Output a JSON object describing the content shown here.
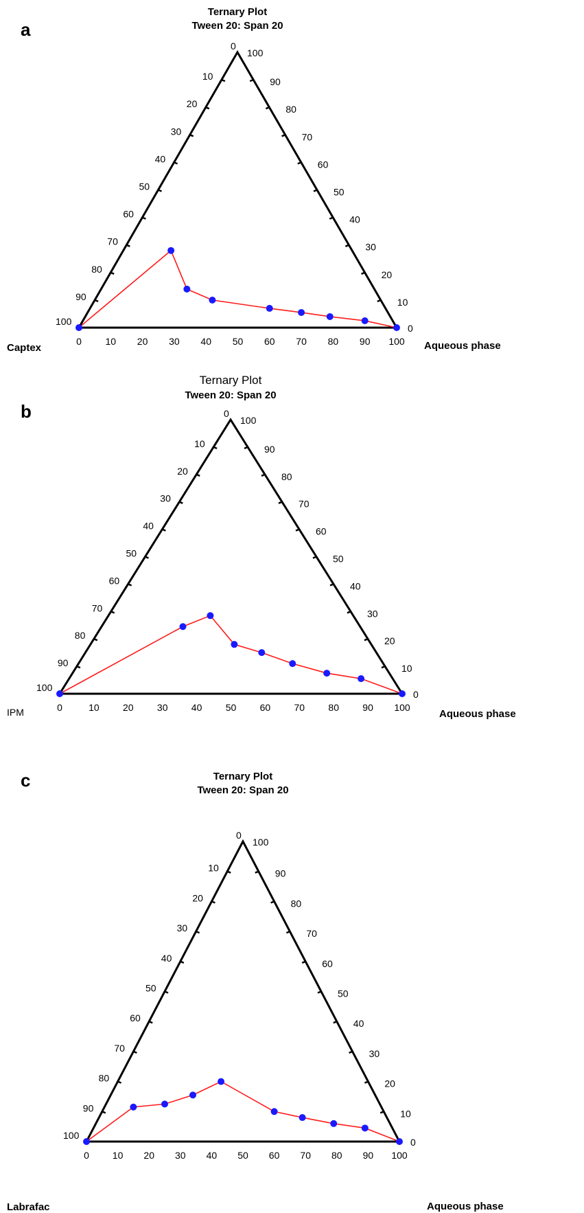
{
  "colors": {
    "frame": "#000000",
    "line": "#ff1a1a",
    "point": "#1a1aff"
  },
  "chart_data": [
    {
      "type": "scatter",
      "panel": "a",
      "title": "Ternary Plot",
      "subtitle": "Tween 20: Span 20",
      "left_corner_label": "Captex",
      "right_corner_label": "Aqueous phase",
      "bottom_ticks": [
        "0",
        "10",
        "20",
        "30",
        "40",
        "50",
        "60",
        "70",
        "80",
        "90",
        "100"
      ],
      "left_ticks": [
        "0",
        "10",
        "20",
        "30",
        "40",
        "50",
        "60",
        "70",
        "80",
        "90",
        "100"
      ],
      "right_ticks": [
        "100",
        "90",
        "80",
        "70",
        "60",
        "50",
        "40",
        "30",
        "20",
        "10",
        "0"
      ],
      "x": [
        0,
        29,
        34,
        42,
        60,
        70,
        79,
        90,
        100
      ],
      "y": [
        0,
        28,
        14,
        10,
        7,
        5.5,
        4,
        2.5,
        0
      ]
    },
    {
      "type": "scatter",
      "panel": "b",
      "title": "Ternary Plot",
      "subtitle": "Tween 20: Span 20",
      "left_corner_label": "IPM",
      "right_corner_label": "Aqueous phase",
      "bottom_ticks": [
        "0",
        "10",
        "20",
        "30",
        "40",
        "50",
        "60",
        "70",
        "80",
        "90",
        "100"
      ],
      "left_ticks": [
        "0",
        "10",
        "20",
        "30",
        "40",
        "50",
        "60",
        "70",
        "80",
        "90",
        "100"
      ],
      "right_ticks": [
        "100",
        "90",
        "80",
        "70",
        "60",
        "50",
        "40",
        "30",
        "20",
        "10",
        "0"
      ],
      "x": [
        0,
        36,
        44,
        51,
        59,
        68,
        78,
        88,
        100
      ],
      "y": [
        0,
        24.5,
        28.5,
        18,
        15,
        11,
        7.5,
        5.5,
        0
      ]
    },
    {
      "type": "scatter",
      "panel": "c",
      "title": "Ternary Plot",
      "subtitle": "Tween 20: Span 20",
      "left_corner_label": "Labrafac",
      "right_corner_label": "Aqueous phase",
      "bottom_ticks": [
        "0",
        "10",
        "20",
        "30",
        "40",
        "50",
        "60",
        "70",
        "80",
        "90",
        "100"
      ],
      "left_ticks": [
        "0",
        "10",
        "20",
        "30",
        "40",
        "50",
        "60",
        "70",
        "80",
        "90",
        "100"
      ],
      "right_ticks": [
        "100",
        "90",
        "80",
        "70",
        "60",
        "50",
        "40",
        "30",
        "20",
        "10",
        "0"
      ],
      "x": [
        0,
        15,
        25,
        34,
        43,
        60,
        69,
        79,
        89,
        100
      ],
      "y": [
        0,
        11.5,
        12.5,
        15.5,
        20,
        10,
        8,
        6,
        4.5,
        0
      ]
    }
  ]
}
